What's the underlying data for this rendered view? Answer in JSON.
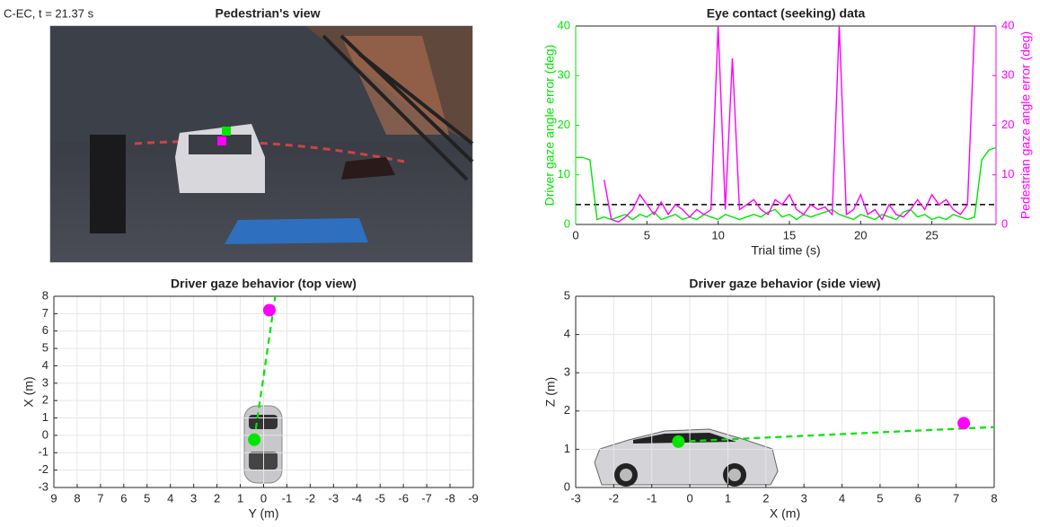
{
  "chart_data": [
    {
      "type": "image",
      "title": "Pedestrian's view",
      "label": "C-EC, t = 21.37 s"
    },
    {
      "type": "line",
      "title": "Eye contact (seeking) data",
      "x_label": "Trial time (s)",
      "y_label": "Driver gaze angle error (deg)",
      "y2_label": "Pedestrian gaze angle error (deg)",
      "x": [
        0,
        0.5,
        1,
        1.5,
        2,
        2.5,
        3,
        3.5,
        4,
        4.5,
        5,
        5.5,
        6,
        6.5,
        7,
        7.5,
        8,
        8.5,
        9,
        9.5,
        10,
        10.5,
        11,
        11.5,
        12,
        12.5,
        13,
        13.5,
        14,
        14.5,
        15,
        15.5,
        16,
        16.5,
        17,
        17.5,
        18,
        18.5,
        19,
        19.5,
        20,
        20.5,
        21,
        21.5,
        22,
        22.5,
        23,
        23.5,
        24,
        24.5,
        25,
        25.5,
        26,
        26.5,
        27,
        27.5,
        28,
        28.5,
        29,
        29.5
      ],
      "xlim": [
        0,
        29.5
      ],
      "xticks": [
        0,
        5,
        10,
        15,
        20,
        25
      ],
      "ylim": [
        0,
        40
      ],
      "yticks": [
        0,
        10,
        20,
        30,
        40
      ],
      "y2lim": [
        0,
        40
      ],
      "y2ticks": [
        0,
        10,
        20,
        30,
        40
      ],
      "grid": false,
      "series": [
        {
          "color": "#00e600",
          "values": [
            13.5,
            13.5,
            13,
            1,
            1.5,
            1,
            1.5,
            2,
            1,
            2,
            1.5,
            2.5,
            1,
            1.5,
            2,
            1,
            1.5,
            1,
            2,
            1.5,
            1,
            2,
            1.5,
            1,
            1.5,
            2,
            1.5,
            2.5,
            3,
            1.5,
            2,
            1,
            2,
            1.5,
            2,
            2.5,
            3,
            2,
            1.5,
            1,
            2,
            1.5,
            1,
            2,
            1.5,
            1,
            2.5,
            3,
            1.5,
            2,
            1,
            1.5,
            1,
            2,
            1.5,
            1,
            1.5,
            13,
            15,
            15.5
          ]
        },
        {
          "color": "#ff00ff",
          "axis": "y2",
          "values": [
            null,
            null,
            null,
            null,
            9,
            1,
            0.5,
            1.5,
            3,
            6,
            4,
            2,
            4.5,
            2,
            4,
            3,
            1.5,
            3,
            2,
            3,
            40,
            3,
            33.5,
            3,
            4,
            5,
            3,
            2,
            5,
            4,
            6,
            3,
            2,
            4,
            3,
            3.5,
            2,
            40,
            2,
            3,
            6,
            2,
            3,
            1,
            4,
            2,
            1.5,
            3,
            5,
            3,
            6,
            4,
            5,
            3,
            2,
            4,
            40,
            null,
            null,
            null
          ]
        }
      ],
      "reference_line": {
        "y": 4,
        "color": "#000000",
        "dash": true
      }
    },
    {
      "type": "scatter",
      "title": "Driver gaze behavior (top view)",
      "x_label": "Y (m)",
      "y_label": "X (m)",
      "xlim": [
        9,
        -9
      ],
      "xticks": [
        9,
        8,
        7,
        6,
        5,
        4,
        3,
        2,
        1,
        0,
        -1,
        -2,
        -3,
        -4,
        -5,
        -6,
        -7,
        -8,
        -9
      ],
      "ylim": [
        -3,
        8
      ],
      "yticks": [
        -3,
        -2,
        -1,
        0,
        1,
        2,
        3,
        4,
        5,
        6,
        7,
        8
      ],
      "grid": true,
      "lines": [
        {
          "x": [
            0.4,
            -0.5
          ],
          "y": [
            -0.25,
            8
          ],
          "color": "#00e600",
          "dash": true
        }
      ],
      "points": [
        {
          "x": 0.4,
          "y": -0.25,
          "color": "#00e600"
        },
        {
          "x": -0.25,
          "y": 7.2,
          "color": "#ff00ff"
        }
      ]
    },
    {
      "type": "scatter",
      "title": "Driver gaze behavior (side view)",
      "x_label": "X (m)",
      "y_label": "Z (m)",
      "xlim": [
        -3,
        8
      ],
      "xticks": [
        -3,
        -2,
        -1,
        0,
        1,
        2,
        3,
        4,
        5,
        6,
        7,
        8
      ],
      "ylim": [
        0,
        5
      ],
      "yticks": [
        0,
        1,
        2,
        3,
        4,
        5
      ],
      "grid": true,
      "lines": [
        {
          "x": [
            -0.3,
            8
          ],
          "y": [
            1.2,
            1.58
          ],
          "color": "#00e600",
          "dash": true
        }
      ],
      "points": [
        {
          "x": -0.3,
          "y": 1.2,
          "color": "#00e600"
        },
        {
          "x": 7.2,
          "y": 1.68,
          "color": "#ff00ff"
        }
      ]
    }
  ]
}
